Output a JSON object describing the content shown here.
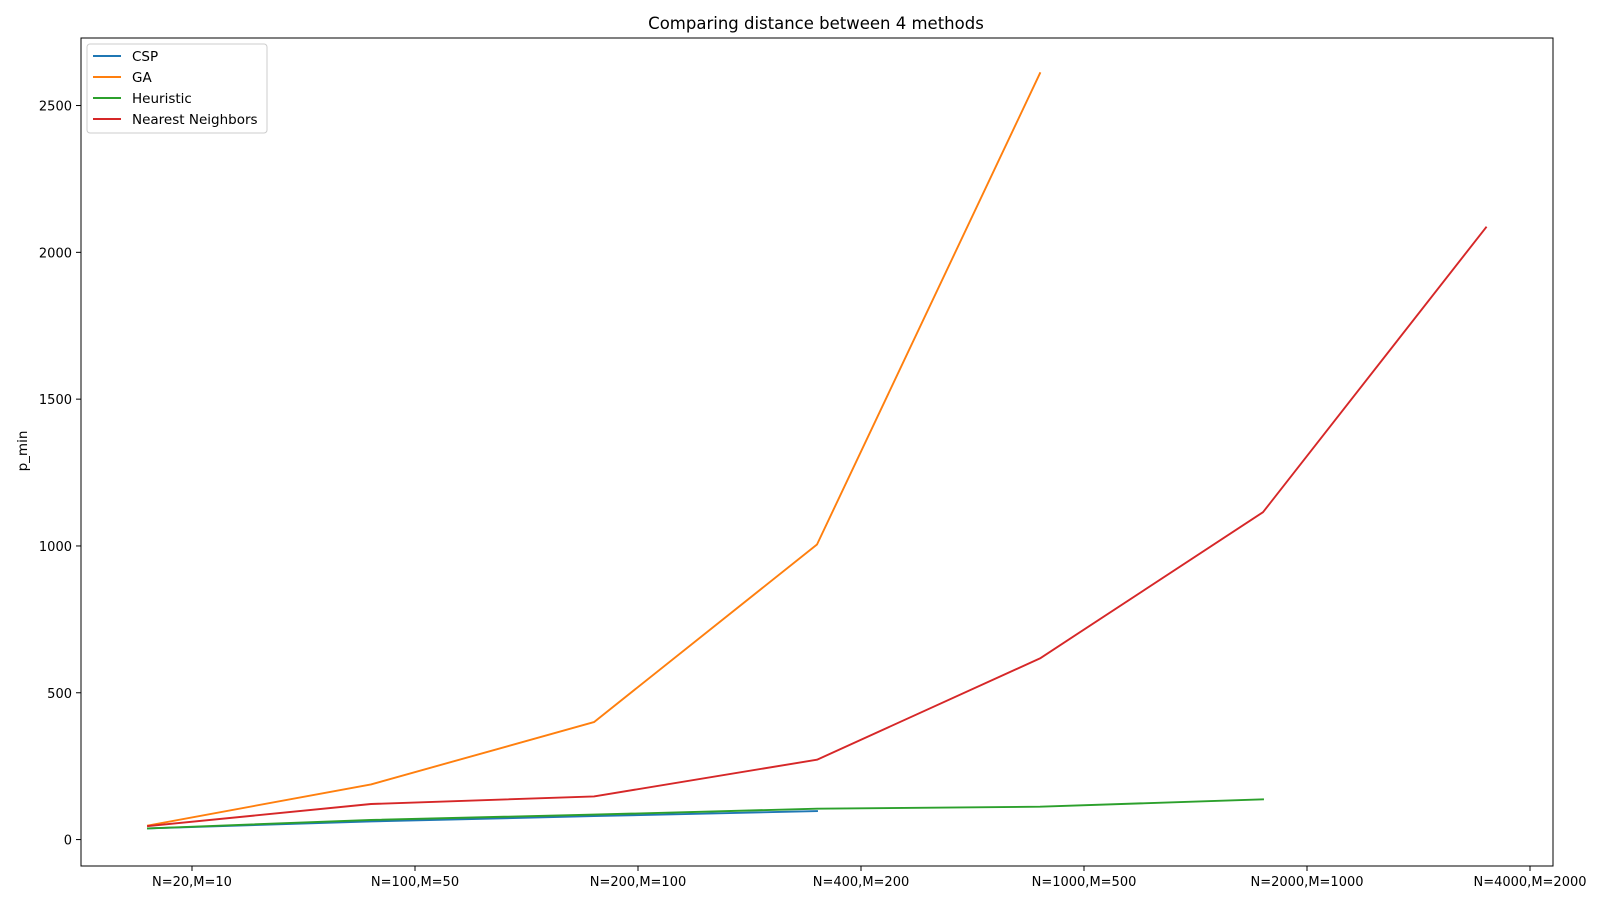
{
  "chart_data": {
    "type": "line",
    "title": "Comparing distance between 4 methods",
    "xlabel": "",
    "ylabel": "p_min",
    "categories": [
      "N=20,M=10",
      "N=100,M=50",
      "N=200,M=100",
      "N=400,M=200",
      "N=1000,M=500",
      "N=2000,M=1000",
      "N=4000,M=2000"
    ],
    "yticks": [
      0,
      500,
      1000,
      1500,
      2000,
      2500
    ],
    "ylim": [
      -90,
      2730
    ],
    "grid": false,
    "legend_position": "top-left",
    "series": [
      {
        "name": "CSP",
        "color": "#1f77b4",
        "values": [
          38,
          62,
          80,
          97,
          null,
          null,
          null
        ]
      },
      {
        "name": "GA",
        "color": "#ff7f0e",
        "values": [
          48,
          188,
          400,
          1005,
          2610,
          null,
          null
        ]
      },
      {
        "name": "Heuristic",
        "color": "#2ca02c",
        "values": [
          38,
          67,
          85,
          105,
          112,
          137,
          null
        ]
      },
      {
        "name": "Nearest Neighbors",
        "color": "#d62728",
        "values": [
          46,
          121,
          147,
          272,
          617,
          1115,
          2085
        ]
      }
    ]
  }
}
